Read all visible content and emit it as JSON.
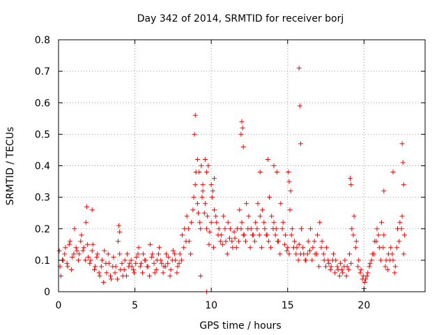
{
  "chart_data": {
    "type": "scatter",
    "title": "Day 342 of 2014, SRMTID for receiver borj",
    "xlabel": "GPS time / hours",
    "ylabel": "SRMTID / TECUs",
    "xlim": [
      0,
      24
    ],
    "ylim": [
      0,
      0.8
    ],
    "x_ticks": [
      0,
      5,
      10,
      15,
      20
    ],
    "x_tick_labels": [
      "0",
      "5",
      "10",
      "15",
      "20"
    ],
    "y_ticks": [
      0,
      0.1,
      0.2,
      0.3,
      0.4,
      0.5,
      0.6,
      0.7,
      0.8
    ],
    "y_tick_labels": [
      "0",
      "0.1",
      "0.2",
      "0.3",
      "0.4",
      "0.5",
      "0.6",
      "0.7",
      "0.8"
    ],
    "grid": true,
    "marker": "+",
    "series": [
      {
        "name": "SRMTID",
        "color": "#ff0000",
        "x": [
          0.05,
          0.15,
          0.3,
          0.45,
          0.6,
          0.75,
          0.9,
          1.05,
          1.2,
          1.35,
          1.5,
          1.65,
          1.8,
          1.95,
          2.1,
          2.25,
          2.4,
          2.55,
          2.7,
          2.85,
          3.0,
          3.15,
          3.3,
          3.45,
          3.6,
          3.75,
          3.9,
          4.05,
          4.2,
          4.35,
          4.5,
          4.65,
          4.8,
          4.95,
          5.1,
          5.25,
          5.4,
          5.55,
          5.7,
          5.85,
          6.0,
          6.15,
          6.3,
          6.45,
          6.6,
          6.75,
          6.9,
          7.05,
          7.2,
          7.35,
          7.5,
          7.65,
          7.8,
          7.95,
          8.1,
          8.25,
          8.4,
          8.55,
          8.7,
          8.85,
          9.0,
          9.15,
          9.3,
          9.45,
          9.6,
          9.75,
          9.9,
          10.05,
          10.2,
          10.35,
          10.5,
          10.65,
          10.8,
          10.95,
          11.1,
          11.25,
          11.4,
          11.55,
          11.7,
          11.85,
          12.0,
          12.15,
          12.3,
          12.45,
          12.6,
          12.75,
          12.9,
          13.05,
          13.2,
          13.35,
          13.5,
          13.65,
          13.8,
          13.95,
          14.1,
          14.25,
          14.4,
          14.55,
          14.7,
          14.85,
          15.0,
          15.15,
          15.3,
          15.45,
          15.6,
          15.75,
          15.9,
          16.05,
          16.2,
          16.35,
          16.5,
          16.65,
          16.8,
          16.95,
          17.1,
          17.25,
          17.4,
          17.55,
          17.7,
          17.85,
          18.0,
          18.15,
          18.3,
          18.45,
          18.6,
          18.75,
          18.9,
          19.05,
          19.2,
          19.35,
          19.5,
          19.65,
          19.8,
          19.95,
          20.1,
          20.25,
          20.4,
          20.55,
          20.7,
          20.85,
          21.0,
          21.15,
          21.3,
          21.45,
          21.6,
          21.75,
          21.9,
          22.05,
          22.2,
          22.35,
          22.5,
          22.65,
          0.1,
          0.25,
          0.4,
          0.55,
          0.7,
          0.85,
          1.0,
          1.15,
          1.3,
          1.45,
          1.6,
          1.75,
          1.9,
          2.05,
          2.2,
          2.35,
          2.5,
          2.65,
          2.8,
          2.95,
          3.1,
          3.25,
          3.4,
          3.55,
          3.7,
          3.85,
          4.0,
          4.15,
          4.3,
          4.45,
          4.6,
          4.75,
          4.9,
          5.05,
          5.2,
          5.35,
          5.5,
          5.65,
          5.8,
          5.95,
          6.1,
          6.25,
          6.4,
          6.55,
          6.7,
          6.85,
          7.0,
          7.15,
          7.3,
          7.45,
          7.6,
          7.75,
          7.9,
          8.05,
          8.2,
          8.35,
          8.5,
          8.65,
          8.8,
          8.95,
          9.1,
          9.25,
          9.4,
          9.55,
          9.7,
          9.85,
          10.0,
          10.15,
          10.3,
          10.45,
          10.6,
          10.75,
          10.9,
          11.05,
          11.2,
          11.35,
          11.5,
          11.65,
          11.8,
          11.95,
          12.1,
          12.25,
          12.4,
          12.55,
          12.7,
          12.85,
          13.0,
          13.15,
          13.3,
          13.45,
          13.6,
          13.75,
          13.9,
          14.05,
          14.2,
          14.35,
          14.5,
          14.65,
          14.8,
          14.95,
          15.1,
          15.25,
          15.4,
          15.55,
          15.7,
          15.85,
          16.0,
          16.15,
          16.3,
          16.45,
          16.6,
          16.75,
          16.9,
          17.05,
          17.2,
          17.35,
          17.5,
          17.65,
          17.8,
          17.95,
          18.1,
          18.25,
          18.4,
          18.55,
          18.7,
          18.85,
          19.0,
          19.15,
          19.3,
          19.45,
          19.6,
          19.75,
          19.9,
          20.05,
          20.2,
          20.35,
          20.5,
          20.65,
          20.8,
          20.95,
          21.1,
          21.25,
          21.4,
          21.55,
          21.7,
          21.85,
          22.0,
          22.15,
          22.3,
          22.45,
          22.6,
          8.9,
          8.95,
          9.1,
          9.2,
          9.35,
          9.45,
          9.6,
          9.7,
          9.8,
          10.0,
          10.1,
          10.2,
          12.0,
          12.05,
          12.1,
          11.95,
          13.2,
          13.7,
          14.1,
          14.3,
          15.05,
          15.1,
          15.2,
          15.75,
          15.8,
          15.85,
          19.1,
          19.15,
          21.3,
          21.9,
          22.5,
          22.55,
          22.6,
          9.7,
          9.3,
          20.0,
          4.0,
          3.95,
          1.85,
          2.2
        ],
        "y": [
          0.13,
          0.05,
          0.1,
          0.14,
          0.08,
          0.16,
          0.11,
          0.2,
          0.13,
          0.12,
          0.18,
          0.14,
          0.22,
          0.11,
          0.1,
          0.15,
          0.08,
          0.12,
          0.05,
          0.1,
          0.13,
          0.06,
          0.09,
          0.04,
          0.11,
          0.08,
          0.16,
          0.07,
          0.05,
          0.1,
          0.12,
          0.09,
          0.08,
          0.06,
          0.11,
          0.14,
          0.09,
          0.12,
          0.1,
          0.08,
          0.15,
          0.12,
          0.06,
          0.1,
          0.14,
          0.09,
          0.08,
          0.12,
          0.11,
          0.07,
          0.13,
          0.1,
          0.08,
          0.12,
          0.18,
          0.2,
          0.24,
          0.16,
          0.22,
          0.3,
          0.38,
          0.25,
          0.2,
          0.32,
          0.28,
          0.24,
          0.19,
          0.3,
          0.26,
          0.22,
          0.2,
          0.18,
          0.24,
          0.16,
          0.22,
          0.2,
          0.14,
          0.17,
          0.2,
          0.26,
          0.22,
          0.18,
          0.28,
          0.24,
          0.2,
          0.18,
          0.22,
          0.28,
          0.24,
          0.26,
          0.2,
          0.18,
          0.3,
          0.24,
          0.22,
          0.2,
          0.16,
          0.28,
          0.22,
          0.18,
          0.14,
          0.26,
          0.2,
          0.16,
          0.14,
          0.15,
          0.2,
          0.12,
          0.1,
          0.16,
          0.2,
          0.14,
          0.12,
          0.18,
          0.22,
          0.16,
          0.1,
          0.14,
          0.09,
          0.08,
          0.12,
          0.1,
          0.07,
          0.09,
          0.06,
          0.1,
          0.08,
          0.12,
          0.2,
          0.24,
          0.16,
          0.1,
          0.07,
          0.05,
          0.04,
          0.06,
          0.09,
          0.12,
          0.16,
          0.2,
          0.14,
          0.22,
          0.18,
          0.1,
          0.12,
          0.14,
          0.1,
          0.08,
          0.2,
          0.22,
          0.24,
          0.18,
          0.08,
          0.1,
          0.12,
          0.09,
          0.15,
          0.07,
          0.12,
          0.14,
          0.1,
          0.16,
          0.13,
          0.1,
          0.15,
          0.09,
          0.13,
          0.07,
          0.11,
          0.06,
          0.08,
          0.03,
          0.09,
          0.12,
          0.05,
          0.08,
          0.06,
          0.04,
          0.12,
          0.09,
          0.07,
          0.05,
          0.08,
          0.1,
          0.07,
          0.09,
          0.12,
          0.08,
          0.06,
          0.1,
          0.08,
          0.05,
          0.11,
          0.09,
          0.07,
          0.12,
          0.1,
          0.06,
          0.08,
          0.09,
          0.05,
          0.1,
          0.12,
          0.06,
          0.09,
          0.1,
          0.14,
          0.16,
          0.2,
          0.12,
          0.26,
          0.34,
          0.28,
          0.22,
          0.3,
          0.25,
          0.2,
          0.15,
          0.22,
          0.14,
          0.24,
          0.18,
          0.16,
          0.15,
          0.2,
          0.12,
          0.17,
          0.16,
          0.19,
          0.14,
          0.16,
          0.2,
          0.18,
          0.16,
          0.2,
          0.14,
          0.18,
          0.16,
          0.2,
          0.18,
          0.14,
          0.22,
          0.18,
          0.16,
          0.14,
          0.2,
          0.18,
          0.16,
          0.12,
          0.2,
          0.15,
          0.13,
          0.12,
          0.18,
          0.14,
          0.12,
          0.1,
          0.12,
          0.14,
          0.1,
          0.12,
          0.13,
          0.1,
          0.16,
          0.12,
          0.08,
          0.14,
          0.12,
          0.08,
          0.1,
          0.07,
          0.1,
          0.06,
          0.08,
          0.05,
          0.07,
          0.08,
          0.05,
          0.07,
          0.09,
          0.18,
          0.14,
          0.08,
          0.06,
          0.04,
          0.03,
          0.05,
          0.08,
          0.1,
          0.12,
          0.16,
          0.18,
          0.1,
          0.14,
          0.08,
          0.07,
          0.1,
          0.12,
          0.06,
          0.14,
          0.16,
          0.2,
          0.12,
          0.5,
          0.56,
          0.42,
          0.38,
          0.4,
          0.34,
          0.42,
          0.38,
          0.4,
          0.34,
          0.32,
          0.36,
          0.54,
          0.52,
          0.46,
          0.5,
          0.38,
          0.42,
          0.4,
          0.38,
          0.38,
          0.35,
          0.32,
          0.71,
          0.59,
          0.47,
          0.36,
          0.34,
          0.32,
          0.38,
          0.47,
          0.41,
          0.34,
          0.0,
          0.05,
          0.01,
          0.19,
          0.21,
          0.27,
          0.26
        ]
      }
    ]
  }
}
